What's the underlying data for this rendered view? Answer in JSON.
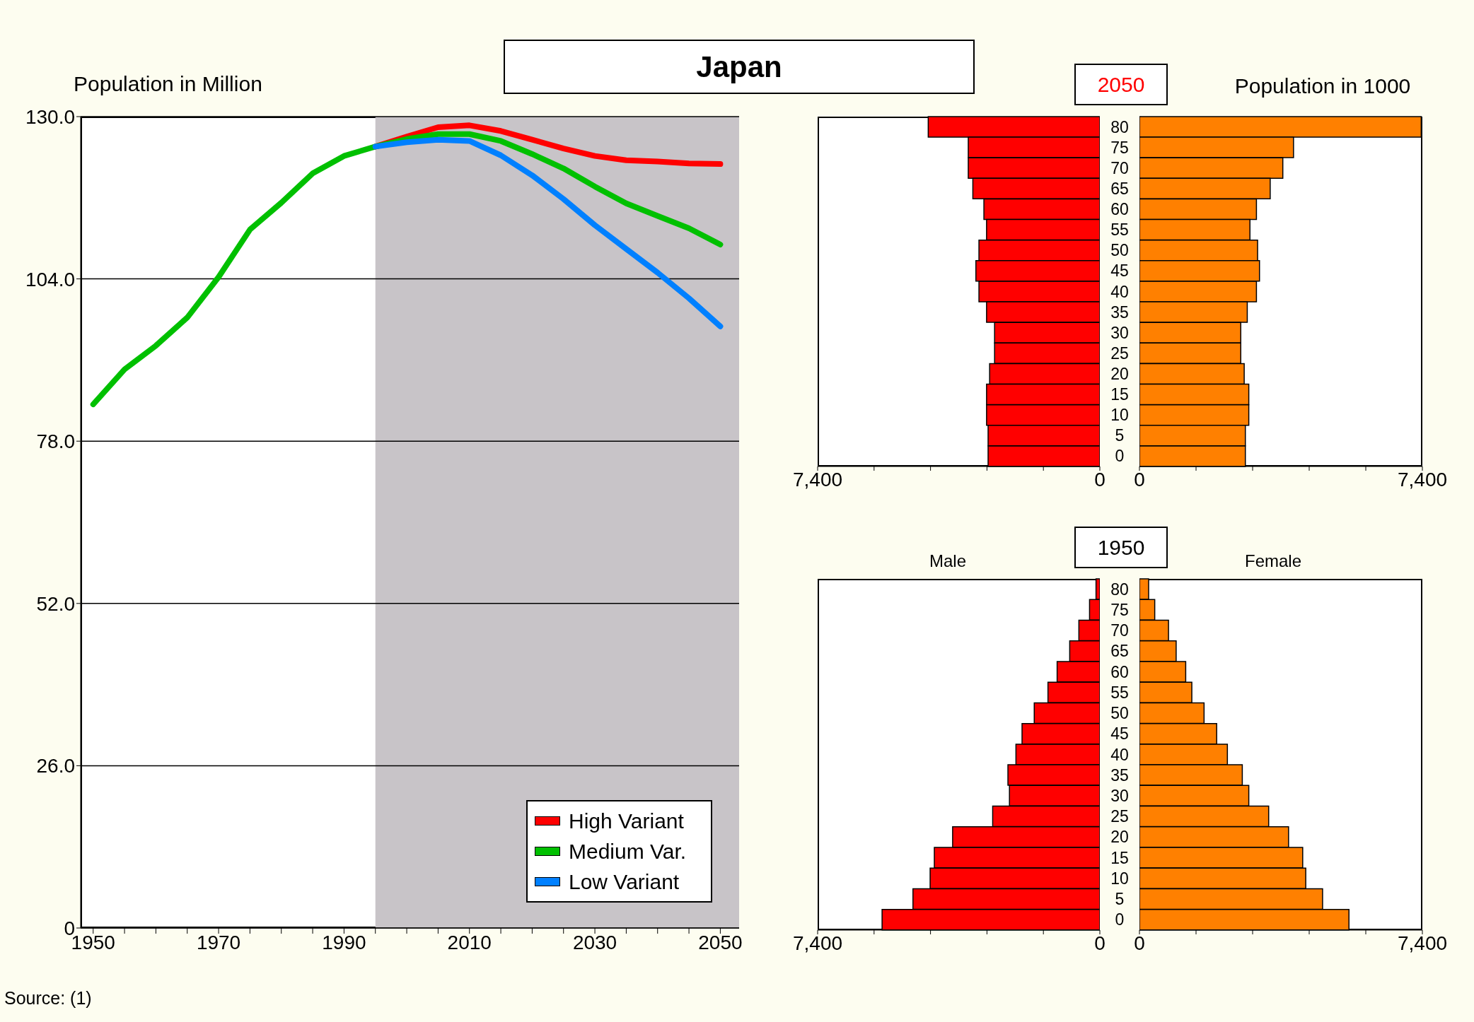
{
  "chart_data": [
    {
      "type": "line",
      "title": "Japan",
      "ylabel": "Population in Million",
      "annotations": [
        "Source: (1)"
      ],
      "series": [
        {
          "name": "High Variant",
          "color": "#ff0000",
          "x": [
            1995,
            2000,
            2005,
            2010,
            2015,
            2020,
            2025,
            2030,
            2035,
            2040,
            2045,
            2050
          ],
          "values": [
            125.2,
            126.8,
            128.3,
            128.6,
            127.7,
            126.3,
            124.9,
            123.7,
            123.0,
            122.8,
            122.5,
            122.4
          ]
        },
        {
          "name": "Medium Var.",
          "color": "#00c000",
          "x": [
            1950,
            1955,
            1960,
            1965,
            1970,
            1975,
            1980,
            1985,
            1990,
            1995,
            2000,
            2005,
            2010,
            2015,
            2020,
            2025,
            2030,
            2035,
            2040,
            2045,
            2050
          ],
          "values": [
            83.9,
            89.5,
            93.3,
            97.8,
            104.3,
            111.9,
            116.2,
            120.9,
            123.7,
            125.2,
            126.4,
            127.2,
            127.2,
            126.1,
            124.0,
            121.7,
            118.8,
            116.1,
            114.1,
            112.1,
            109.5
          ]
        },
        {
          "name": "Low Variant",
          "color": "#0080ff",
          "x": [
            1995,
            2000,
            2005,
            2010,
            2015,
            2020,
            2025,
            2030,
            2035,
            2040,
            2045,
            2050
          ],
          "values": [
            125.2,
            125.9,
            126.3,
            126.1,
            123.8,
            120.6,
            116.8,
            112.6,
            108.8,
            105.0,
            100.9,
            96.4
          ]
        }
      ],
      "xlim": [
        1948,
        2053
      ],
      "xticks": [
        1950,
        {
          "value": 1955,
          "label": null
        },
        {
          "value": 1960,
          "label": null
        },
        {
          "value": 1965,
          "label": null
        },
        1970,
        {
          "value": 1975,
          "label": null
        },
        {
          "value": 1980,
          "label": null
        },
        {
          "value": 1985,
          "label": null
        },
        1990,
        {
          "value": 1995,
          "label": null
        },
        {
          "value": 2000,
          "label": null
        },
        {
          "value": 2005,
          "label": null
        },
        2010,
        {
          "value": 2015,
          "label": null
        },
        {
          "value": 2020,
          "label": null
        },
        {
          "value": 2025,
          "label": null
        },
        2030,
        {
          "value": 2035,
          "label": null
        },
        {
          "value": 2040,
          "label": null
        },
        {
          "value": 2045,
          "label": null
        },
        2050
      ],
      "ylim": [
        0,
        130
      ],
      "yticks": [
        0,
        {
          "value": 26,
          "label": "26.0"
        },
        {
          "value": 52,
          "label": "52.0"
        },
        {
          "value": 78,
          "label": "78.0"
        },
        {
          "value": 104,
          "label": "104.0"
        },
        {
          "value": 130,
          "label": "130.0"
        }
      ],
      "grid": "y",
      "legend": "bottom right",
      "marker": "none",
      "line_style": "solid",
      "bands": [
        {
          "axis": "x",
          "from": 1995,
          "to": 2053,
          "color": "#c8c4c8"
        }
      ]
    },
    {
      "type": "bar",
      "orientation": "horizontal",
      "title": "2050",
      "categories": [
        "80",
        "75",
        "70",
        "65",
        "60",
        "55",
        "50",
        "45",
        "40",
        "35",
        "30",
        "25",
        "20",
        "15",
        "10",
        "5",
        "0"
      ],
      "color": "#ff0000",
      "values": [
        4500,
        3450,
        3450,
        3330,
        3040,
        2970,
        3170,
        3250,
        3170,
        2970,
        2760,
        2760,
        2890,
        2970,
        2970,
        2930,
        2930
      ],
      "xlim": [
        7400,
        0
      ],
      "xticks": [
        {
          "value": 7400,
          "label": "7,400"
        },
        {
          "value": 5920,
          "label": null
        },
        {
          "value": 4440,
          "label": null
        },
        {
          "value": 2960,
          "label": null
        },
        {
          "value": 1480,
          "label": null
        },
        0
      ],
      "tick_labels": "x"
    },
    {
      "type": "bar",
      "orientation": "horizontal",
      "title": "Population in 1000",
      "categories": [
        "80",
        "75",
        "70",
        "65",
        "60",
        "55",
        "50",
        "45",
        "40",
        "35",
        "30",
        "25",
        "20",
        "15",
        "10",
        "5",
        "0"
      ],
      "color": "#ff8000",
      "values": [
        7370,
        4030,
        3750,
        3420,
        3060,
        2890,
        3090,
        3140,
        3060,
        2820,
        2650,
        2650,
        2740,
        2860,
        2860,
        2770,
        2770
      ],
      "xlim": [
        0,
        7400
      ],
      "xticks": [
        0,
        {
          "value": 1480,
          "label": null
        },
        {
          "value": 2960,
          "label": null
        },
        {
          "value": 4440,
          "label": null
        },
        {
          "value": 5920,
          "label": null
        },
        {
          "value": 7400,
          "label": "7,400"
        }
      ]
    },
    {
      "type": "bar",
      "orientation": "horizontal",
      "title": "1950",
      "subtitle": "Male",
      "categories": [
        "80",
        "75",
        "70",
        "65",
        "60",
        "55",
        "50",
        "45",
        "40",
        "35",
        "30",
        "25",
        "20",
        "15",
        "10",
        "5",
        "0"
      ],
      "color": "#ff0000",
      "values": [
        100,
        270,
        550,
        790,
        1120,
        1360,
        1720,
        2040,
        2200,
        2410,
        2370,
        2810,
        3860,
        4340,
        4450,
        4900,
        5710
      ],
      "xlim": [
        7400,
        0
      ],
      "xticks": [
        {
          "value": 7400,
          "label": "7,400"
        },
        {
          "value": 5920,
          "label": null
        },
        {
          "value": 4440,
          "label": null
        },
        {
          "value": 2960,
          "label": null
        },
        {
          "value": 1480,
          "label": null
        },
        0
      ],
      "tick_labels": "x"
    },
    {
      "type": "bar",
      "orientation": "horizontal",
      "title": "Female",
      "categories": [
        "80",
        "75",
        "70",
        "65",
        "60",
        "55",
        "50",
        "45",
        "40",
        "35",
        "30",
        "25",
        "20",
        "15",
        "10",
        "5",
        "0"
      ],
      "color": "#ff8000",
      "values": [
        240,
        400,
        760,
        960,
        1210,
        1370,
        1690,
        2020,
        2300,
        2690,
        2860,
        3380,
        3900,
        4270,
        4350,
        4790,
        5480
      ],
      "xlim": [
        0,
        7400
      ],
      "xticks": [
        0,
        {
          "value": 1480,
          "label": null
        },
        {
          "value": 2960,
          "label": null
        },
        {
          "value": 4440,
          "label": null
        },
        {
          "value": 5920,
          "label": null
        },
        {
          "value": 7400,
          "label": "7,400"
        }
      ]
    }
  ]
}
